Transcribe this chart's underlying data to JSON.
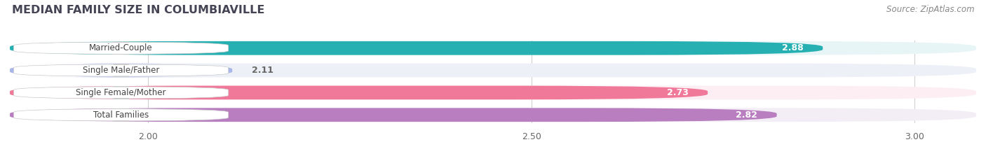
{
  "title": "MEDIAN FAMILY SIZE IN COLUMBIAVILLE",
  "source": "Source: ZipAtlas.com",
  "categories": [
    "Married-Couple",
    "Single Male/Father",
    "Single Female/Mother",
    "Total Families"
  ],
  "values": [
    2.88,
    2.11,
    2.73,
    2.82
  ],
  "bar_colors": [
    "#26b0b2",
    "#aab5e8",
    "#f07898",
    "#b87ec0"
  ],
  "bar_bg_colors": [
    "#e8f5f6",
    "#eef0f8",
    "#fdeef3",
    "#f3eef6"
  ],
  "xlim_min": 1.82,
  "xlim_max": 3.08,
  "xticks": [
    2.0,
    2.5,
    3.0
  ],
  "bar_height": 0.62,
  "label_inside_color": "#ffffff",
  "label_outside_color": "#666666",
  "title_fontsize": 11.5,
  "source_fontsize": 8.5,
  "tick_fontsize": 9,
  "bar_label_fontsize": 9,
  "category_fontsize": 8.5,
  "figsize": [
    14.06,
    2.33
  ],
  "dpi": 100,
  "bg_color": "#ffffff",
  "rounding_size": 0.25
}
